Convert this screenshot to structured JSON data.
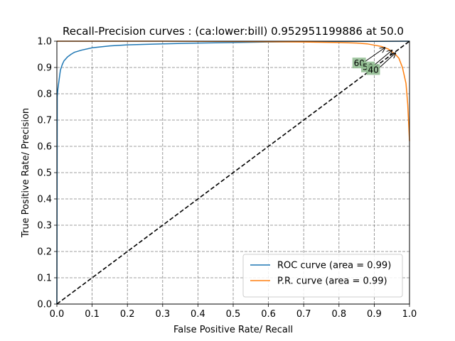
{
  "chart_data": {
    "type": "line",
    "title": "Recall-Precision curves : (ca:lower:bill) 0.952951199886 at 50.0",
    "xlabel": "False Positive Rate/ Recall",
    "ylabel": "True Positive Rate/ Precision",
    "xlim": [
      0.0,
      1.0
    ],
    "ylim": [
      0.0,
      1.0
    ],
    "x_ticks": [
      "0.0",
      "0.1",
      "0.2",
      "0.3",
      "0.4",
      "0.5",
      "0.6",
      "0.7",
      "0.8",
      "0.9",
      "1.0"
    ],
    "y_ticks": [
      "0.0",
      "0.1",
      "0.2",
      "0.3",
      "0.4",
      "0.5",
      "0.6",
      "0.7",
      "0.8",
      "0.9",
      "1.0"
    ],
    "grid": true,
    "legend_position": "lower-right",
    "series": [
      {
        "name": "ROC curve (area = 0.99)",
        "color": "#1f77b4",
        "x": [
          0.0,
          0.001,
          0.003,
          0.006,
          0.01,
          0.015,
          0.02,
          0.03,
          0.04,
          0.05,
          0.07,
          0.1,
          0.15,
          0.2,
          0.3,
          0.4,
          0.5,
          0.6,
          0.7,
          0.8,
          0.9,
          1.0
        ],
        "y": [
          0.0,
          0.79,
          0.82,
          0.85,
          0.89,
          0.91,
          0.925,
          0.94,
          0.95,
          0.958,
          0.966,
          0.975,
          0.982,
          0.986,
          0.99,
          0.993,
          0.995,
          0.997,
          0.998,
          0.999,
          0.9995,
          1.0
        ]
      },
      {
        "name": "P.R. curve (area = 0.99)",
        "color": "#ff7f0e",
        "x": [
          0.0,
          0.3,
          0.5,
          0.7,
          0.8,
          0.85,
          0.88,
          0.9,
          0.92,
          0.94,
          0.95,
          0.96,
          0.97,
          0.98,
          0.99,
          0.995,
          1.0
        ],
        "y": [
          1.0,
          1.0,
          0.999,
          0.997,
          0.995,
          0.993,
          0.99,
          0.985,
          0.98,
          0.97,
          0.96,
          0.95,
          0.935,
          0.9,
          0.84,
          0.76,
          0.62
        ]
      },
      {
        "name": "",
        "style": "dashed",
        "color": "#000000",
        "x": [
          0.0,
          1.0
        ],
        "y": [
          0.0,
          1.0
        ]
      }
    ],
    "annotations": [
      {
        "text": "60",
        "label_x": 0.84,
        "label_y": 0.905,
        "point_x": 0.93,
        "point_y": 0.975
      },
      {
        "text": "50",
        "label_x": 0.865,
        "label_y": 0.89,
        "point_x": 0.95,
        "point_y": 0.965
      },
      {
        "text": "40",
        "label_x": 0.88,
        "label_y": 0.88,
        "point_x": 0.96,
        "point_y": 0.955
      }
    ]
  }
}
